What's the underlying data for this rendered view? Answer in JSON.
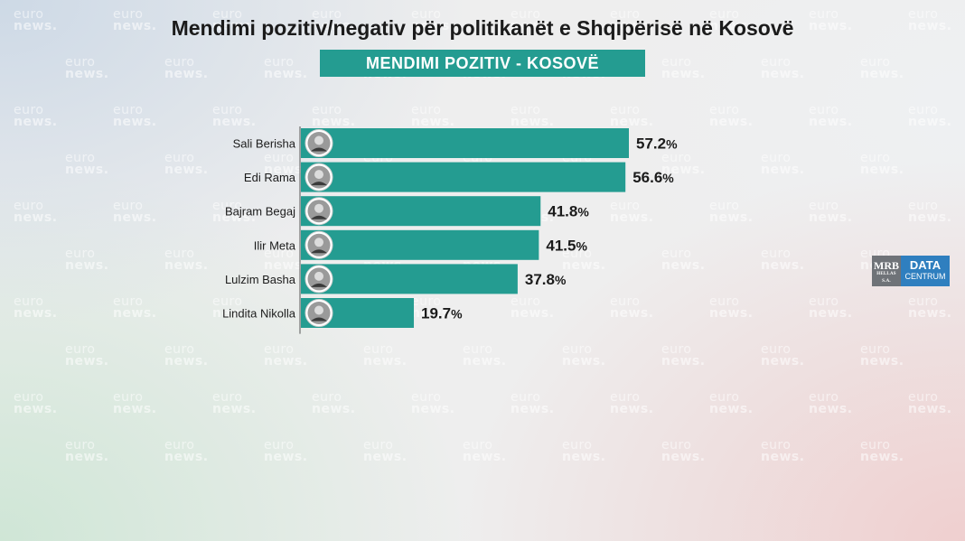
{
  "title": "Mendimi pozitiv/negativ për politikanët e Shqipërisë në Kosovë",
  "subtitle": "MENDIMI POZITIV -  KOSOVË",
  "watermark": {
    "top": "euro",
    "bottom": "news."
  },
  "logo": {
    "mrb": "MRB",
    "mrb_sub": "HELLAS S.A.",
    "data": "DATA",
    "centrum": "CENTRUM"
  },
  "colors": {
    "bar": "#249c91",
    "subtitle_bg": "#249c91"
  },
  "chart_data": {
    "type": "bar",
    "orientation": "horizontal",
    "categories": [
      "Sali Berisha",
      "Edi Rama",
      "Bajram Begaj",
      "Ilir Meta",
      "Lulzim Basha",
      "Lindita Nikolla"
    ],
    "values": [
      57.2,
      56.6,
      41.8,
      41.5,
      37.8,
      19.7
    ],
    "value_labels": [
      "57.2",
      "56.6",
      "41.8",
      "41.5",
      "37.8",
      "19.7"
    ],
    "unit": "%",
    "xlim": [
      0,
      100
    ],
    "grid": false,
    "legend": "none"
  }
}
